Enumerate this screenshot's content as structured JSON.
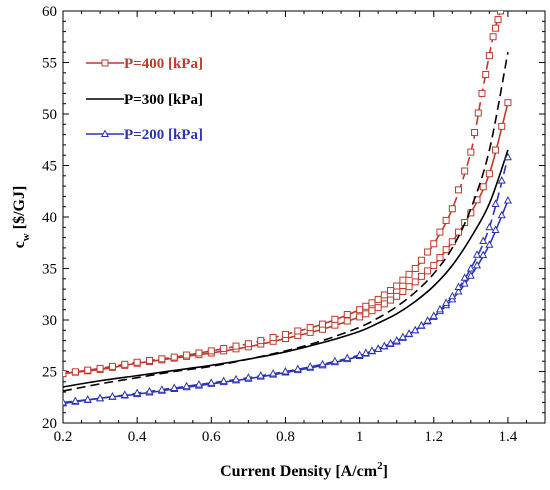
{
  "chart_data": {
    "type": "line",
    "title": "",
    "xlabel": "Current Density [A/cm",
    "xlabel_sup": "2",
    "xlabel_end": "]",
    "ylabel_main": "c",
    "ylabel_sub": "w",
    "ylabel_rest": " [$/GJ]",
    "xlim": [
      0.2,
      1.5
    ],
    "ylim": [
      20,
      60
    ],
    "xticks": [
      0.2,
      0.4,
      0.6,
      0.8,
      1.0,
      1.2,
      1.4
    ],
    "xtick_labels": [
      "0.2",
      "0.4",
      "0.6",
      "0.8",
      "1",
      "1.2",
      "1.4"
    ],
    "yticks": [
      20,
      25,
      30,
      35,
      40,
      45,
      50,
      55,
      60
    ],
    "ytick_labels": [
      "20",
      "25",
      "30",
      "35",
      "40",
      "45",
      "50",
      "55",
      "60"
    ],
    "grid": false,
    "legend_position": "top-left",
    "series": [
      {
        "name": "P=400 [kPa]",
        "color": "#c0392b",
        "marker": "square",
        "lines": [
          {
            "style": "solid",
            "x": [
              0.2,
              0.3,
              0.4,
              0.5,
              0.6,
              0.7,
              0.8,
              0.9,
              1.0,
              1.05,
              1.1,
              1.15,
              1.2,
              1.25,
              1.3,
              1.35,
              1.4
            ],
            "y": [
              24.8,
              25.2,
              25.8,
              26.3,
              26.8,
              27.4,
              28.2,
              29.1,
              30.3,
              31.2,
              32.3,
              33.7,
              35.3,
              37.6,
              40.4,
              44.2,
              51.1
            ]
          },
          {
            "style": "dashed",
            "x": [
              0.2,
              0.3,
              0.4,
              0.5,
              0.6,
              0.7,
              0.8,
              0.9,
              1.0,
              1.05,
              1.1,
              1.15,
              1.2,
              1.25,
              1.3,
              1.33,
              1.36,
              1.38
            ],
            "y": [
              24.8,
              25.3,
              25.9,
              26.4,
              27.0,
              27.7,
              28.6,
              29.6,
              31.0,
              32.0,
              33.3,
              35.0,
              37.4,
              40.8,
              46.3,
              52.0,
              57.5,
              60.0
            ]
          }
        ]
      },
      {
        "name": "P=300 [kPa]",
        "color": "#000000",
        "marker": "none",
        "lines": [
          {
            "style": "solid",
            "x": [
              0.2,
              0.3,
              0.4,
              0.5,
              0.6,
              0.7,
              0.8,
              0.9,
              1.0,
              1.05,
              1.1,
              1.15,
              1.2,
              1.25,
              1.3,
              1.35,
              1.4
            ],
            "y": [
              23.5,
              24.1,
              24.6,
              25.1,
              25.6,
              26.2,
              26.9,
              27.8,
              28.9,
              29.7,
              30.6,
              31.8,
              33.3,
              35.3,
              38.0,
              41.3,
              46.5
            ]
          },
          {
            "style": "dashed",
            "x": [
              0.2,
              0.3,
              0.4,
              0.5,
              0.6,
              0.7,
              0.8,
              0.9,
              1.0,
              1.05,
              1.1,
              1.15,
              1.2,
              1.25,
              1.3,
              1.35,
              1.4
            ],
            "y": [
              23.1,
              23.8,
              24.4,
              25.0,
              25.5,
              26.2,
              27.0,
              28.0,
              29.3,
              30.2,
              31.3,
              32.7,
              34.5,
              37.0,
              40.8,
              46.5,
              56.0
            ]
          }
        ]
      },
      {
        "name": "P=200 [kPa]",
        "color": "#2c35b8",
        "marker": "triangle",
        "lines": [
          {
            "style": "solid",
            "x": [
              0.2,
              0.3,
              0.4,
              0.5,
              0.6,
              0.7,
              0.8,
              0.9,
              1.0,
              1.05,
              1.1,
              1.15,
              1.2,
              1.25,
              1.3,
              1.35,
              1.4
            ],
            "y": [
              21.9,
              22.4,
              22.8,
              23.3,
              23.8,
              24.3,
              24.9,
              25.6,
              26.5,
              27.2,
              27.9,
              29.0,
              30.3,
              32.0,
              34.3,
              37.3,
              41.6
            ]
          },
          {
            "style": "dashed",
            "x": [
              0.2,
              0.3,
              0.4,
              0.5,
              0.6,
              0.7,
              0.8,
              0.9,
              1.0,
              1.05,
              1.1,
              1.15,
              1.2,
              1.25,
              1.3,
              1.35,
              1.4
            ],
            "y": [
              22.0,
              22.4,
              22.9,
              23.4,
              23.9,
              24.4,
              25.0,
              25.7,
              26.6,
              27.2,
              28.0,
              29.0,
              30.4,
              32.3,
              35.0,
              39.0,
              45.8
            ]
          }
        ]
      }
    ]
  }
}
